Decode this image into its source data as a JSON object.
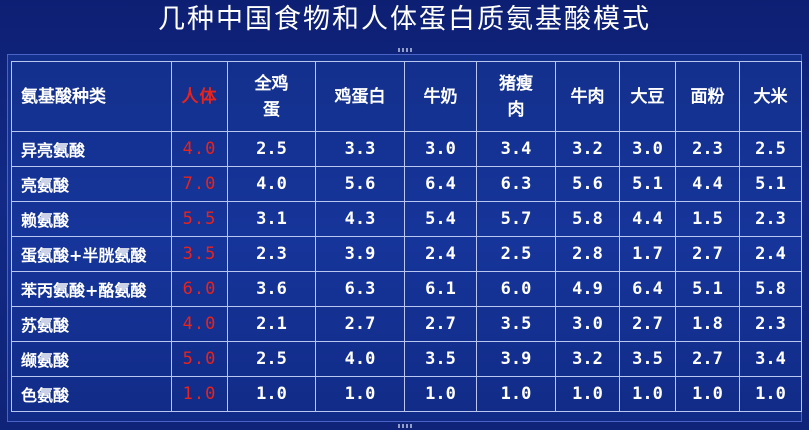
{
  "title": "几种中国食物和人体蛋白质氨基酸模式",
  "headers": [
    "氨基酸种类",
    "人体",
    "全鸡蛋",
    "鸡蛋白",
    "牛奶",
    "猪瘦肉",
    "牛肉",
    "大豆",
    "面粉",
    "大米"
  ],
  "header_display": [
    "氨基酸种类",
    "人体",
    "全鸡\n蛋",
    "鸡蛋白",
    "牛奶",
    "猪瘦\n肉",
    "牛肉",
    "大豆",
    "面粉",
    "大米"
  ],
  "rows": [
    [
      "异亮氨酸",
      "4.0",
      "2.5",
      "3.3",
      "3.0",
      "3.4",
      "3.2",
      "3.0",
      "2.3",
      "2.5"
    ],
    [
      "亮氨酸",
      "7.0",
      "4.0",
      "5.6",
      "6.4",
      "6.3",
      "5.6",
      "5.1",
      "4.4",
      "5.1"
    ],
    [
      "赖氨酸",
      "5.5",
      "3.1",
      "4.3",
      "5.4",
      "5.7",
      "5.8",
      "4.4",
      "1.5",
      "2.3"
    ],
    [
      "蛋氨酸+半胱氨酸",
      "3.5",
      "2.3",
      "3.9",
      "2.4",
      "2.5",
      "2.8",
      "1.7",
      "2.7",
      "2.4"
    ],
    [
      "苯丙氨酸+酪氨酸",
      "6.0",
      "3.6",
      "6.3",
      "6.1",
      "6.0",
      "4.9",
      "6.4",
      "5.1",
      "5.8"
    ],
    [
      "苏氨酸",
      "4.0",
      "2.1",
      "2.7",
      "2.7",
      "3.5",
      "3.0",
      "2.7",
      "1.8",
      "2.3"
    ],
    [
      "缬氨酸",
      "5.0",
      "2.5",
      "4.0",
      "3.5",
      "3.9",
      "3.2",
      "3.5",
      "2.7",
      "3.4"
    ],
    [
      "色氨酸",
      "1.0",
      "1.0",
      "1.0",
      "1.0",
      "1.0",
      "1.0",
      "1.0",
      "1.0",
      "1.0"
    ]
  ],
  "colors": {
    "background": "#122a86",
    "highlight_column": "#e8231b",
    "text": "#ffffff",
    "grid": "#b8c6f0"
  }
}
